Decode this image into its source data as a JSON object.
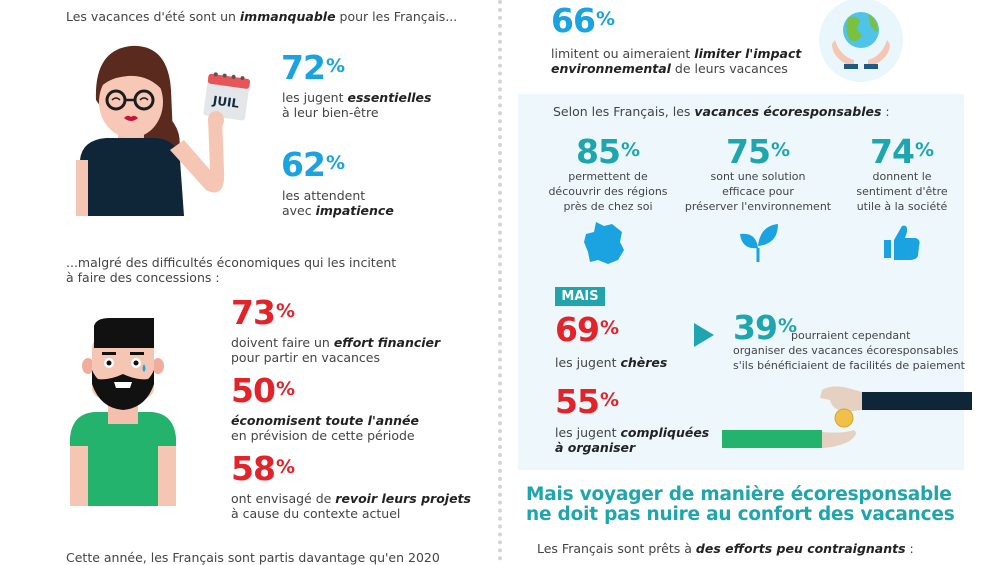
{
  "left": {
    "intro": {
      "pre": "Les vacances d'été sont un ",
      "bold": "immanquable",
      "post": " pour les Français..."
    },
    "calendar_label": "JUIL",
    "stat1": {
      "value": "72",
      "unit": "%",
      "line1_pre": "les jugent ",
      "line1_bold": "essentielles",
      "line2": "à leur bien-être"
    },
    "stat2": {
      "value": "62",
      "unit": "%",
      "line1": "les attendent",
      "line2_pre": "avec ",
      "line2_bold": "impatience"
    },
    "intro2": {
      "line1": "...malgré des difficultés économiques qui les incitent",
      "line2": "à faire des concessions :"
    },
    "stat3": {
      "value": "73",
      "unit": "%",
      "line1_pre": "doivent faire un ",
      "line1_bold": "effort financier",
      "line2": "pour partir en vacances"
    },
    "stat4": {
      "value": "50",
      "unit": "%",
      "line1_bold": "économisent toute l'année",
      "line2": "en prévision de cette période"
    },
    "stat5": {
      "value": "58",
      "unit": "%",
      "line1_pre": "ont envisagé de ",
      "line1_bold": "revoir leurs projets",
      "line2": "à cause du contexte actuel"
    },
    "footer_cut": "Cette année, les Français sont partis davantage qu'en 2020"
  },
  "right": {
    "stat66": {
      "value": "66",
      "unit": "%",
      "line1_pre": "limitent ou aimeraient ",
      "line1_bold": "limiter l'impact",
      "line2_bold": "environnemental",
      "line2_post": " de leurs vacances"
    },
    "panel_title": {
      "pre": "Selon les Français, les ",
      "bold": "vacances écoresponsables",
      "post": " :"
    },
    "cols": [
      {
        "value": "85",
        "unit": "%",
        "lines": [
          "permettent de",
          "découvrir des régions",
          "près de chez soi"
        ],
        "icon": "france-map-icon"
      },
      {
        "value": "75",
        "unit": "%",
        "lines": [
          "sont une solution",
          "efficace pour",
          "préserver l'environnement"
        ],
        "icon": "sprout-icon"
      },
      {
        "value": "74",
        "unit": "%",
        "lines": [
          "donnent le",
          "sentiment d'être",
          "utile à la société"
        ],
        "icon": "thumbs-up-icon"
      }
    ],
    "mais_label": "MAIS",
    "stat69": {
      "value": "69",
      "unit": "%",
      "line1_pre": "les jugent ",
      "line1_bold": "chères"
    },
    "stat39": {
      "value": "39",
      "unit": "%",
      "line1": "pourraient cependant",
      "line2": "organiser des vacances écoresponsables",
      "line3": "s'ils bénéficiaient de facilités de paiement"
    },
    "stat55": {
      "value": "55",
      "unit": "%",
      "line1_pre": "les jugent ",
      "line1_bold": "compliquées",
      "line2_bold": "à organiser"
    },
    "headline": {
      "line1": "Mais voyager de manière écoresponsable",
      "line2": "ne doit pas nuire au confort des vacances"
    },
    "efforts": {
      "pre": "Les Français sont prêts à ",
      "bold": "des efforts peu contraignants",
      "post": " :"
    }
  },
  "colors": {
    "blue": "#1aa3e0",
    "red": "#e2232a",
    "teal": "#1fa5ad",
    "panel": "#eef8fc"
  }
}
